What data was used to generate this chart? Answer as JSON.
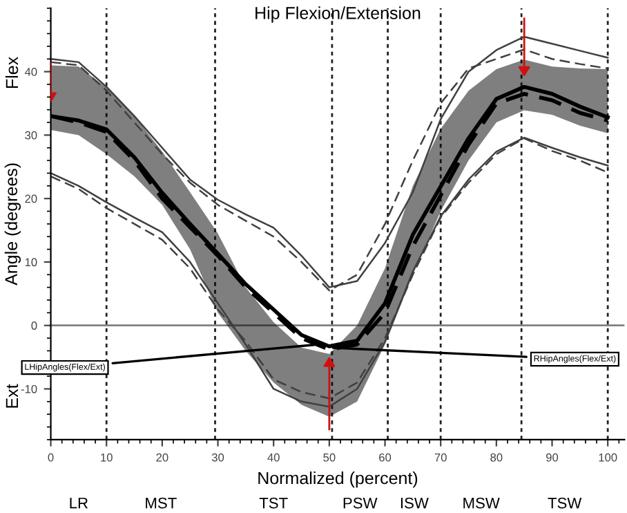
{
  "chart_data": {
    "type": "line",
    "title": "Hip Flexion/Extension",
    "xlabel": "Normalized (percent)",
    "ylabel": "Angle (degrees)",
    "annotations": [
      "Flex",
      "Ext",
      {
        "text": "LHipAngles(Flex/Ext)",
        "x": 48,
        "y": -3
      },
      {
        "text": "RHipAngles(Flex/Ext)",
        "x": 50,
        "y": -3.5
      },
      "LR",
      "MST",
      "TST",
      "PSW",
      "ISW",
      "MSW",
      "TSW"
    ],
    "x": [
      0,
      5,
      10,
      15,
      20,
      25,
      30,
      35,
      40,
      45,
      50,
      55,
      60,
      65,
      70,
      75,
      80,
      85,
      90,
      95,
      100
    ],
    "series": [
      {
        "color": "#404040",
        "line_style": "solid",
        "values": [
          42,
          41.5,
          37.6,
          33,
          28,
          23,
          19.8,
          17.5,
          15.4,
          11,
          6,
          7,
          13,
          21,
          32.5,
          40,
          43.4,
          45.5,
          44.4,
          43.3,
          42.2
        ]
      },
      {
        "color": "#404040",
        "line_style": "dashed",
        "values": [
          41.5,
          41,
          37,
          32,
          27,
          22.5,
          19,
          16.5,
          14,
          10,
          5.5,
          8,
          16,
          26,
          35,
          40.5,
          42,
          43.5,
          42,
          41.2,
          40.5
        ]
      },
      {
        "color": "#404040",
        "line_style": "solid",
        "values": [
          24,
          22,
          19.4,
          17,
          14.7,
          10,
          3.5,
          -3,
          -10,
          -12,
          -12.8,
          -10,
          -2.6,
          8.5,
          17.2,
          23,
          27.4,
          29.6,
          28,
          26.5,
          25.2
        ]
      },
      {
        "color": "#404040",
        "line_style": "dashed",
        "values": [
          23.5,
          21.5,
          18.5,
          16,
          13.5,
          9,
          2.5,
          -2.5,
          -8.5,
          -10.5,
          -11.5,
          -9,
          -2,
          8,
          17,
          22.5,
          27,
          29.5,
          27.5,
          26,
          24.1
        ]
      },
      {
        "color": "#000000",
        "line_style": "solid",
        "values": [
          33,
          32.3,
          30.9,
          26.5,
          20.9,
          16,
          11.3,
          6.5,
          2.5,
          -1.5,
          -3.3,
          -2.4,
          3.5,
          14.3,
          21.9,
          29.5,
          35.7,
          37.6,
          36.5,
          34.5,
          32.8
        ],
        "lower": [
          30.8,
          30,
          27,
          23.5,
          19,
          12,
          2,
          -4,
          -9,
          -12.5,
          -14.4,
          -12,
          -3,
          8,
          18,
          26,
          32,
          33.9,
          33.2,
          31.5,
          30.3
        ],
        "upper": [
          41,
          40.8,
          37.5,
          33,
          27.4,
          21,
          14.5,
          6,
          0.5,
          -3.5,
          -4.5,
          0,
          9,
          22,
          31,
          37,
          40.4,
          41.9,
          40.8,
          40.5,
          40.4
        ]
      },
      {
        "color": "#000000",
        "line_style": "dashed",
        "values": [
          33,
          32,
          30.5,
          26,
          20,
          15.5,
          11,
          6,
          2,
          -2,
          -3.8,
          -3,
          2,
          12.5,
          20.5,
          28.5,
          35,
          36.5,
          35.5,
          33.5,
          32.3
        ]
      }
    ],
    "xlim": [
      0,
      103
    ],
    "ylim": [
      -18,
      50
    ],
    "xticks": [
      0,
      10,
      20,
      30,
      40,
      50,
      60,
      70,
      80,
      90,
      100
    ],
    "yticks": [
      -10,
      0,
      10,
      20,
      30,
      40
    ],
    "ref_lines": [
      {
        "axis": "y",
        "value": 0,
        "color": "#808080"
      },
      {
        "axis": "x",
        "value": 10,
        "color": "#222222",
        "line_style": "dotted"
      },
      {
        "axis": "x",
        "value": 29.5,
        "color": "#222222",
        "line_style": "dotted"
      },
      {
        "axis": "x",
        "value": 50.5,
        "color": "#222222",
        "line_style": "dotted"
      },
      {
        "axis": "x",
        "value": 60.5,
        "color": "#222222",
        "line_style": "dotted"
      },
      {
        "axis": "x",
        "value": 70,
        "color": "#222222",
        "line_style": "dotted"
      },
      {
        "axis": "x",
        "value": 84.5,
        "color": "#222222",
        "line_style": "dotted"
      },
      {
        "axis": "x",
        "value": 100,
        "color": "#222222",
        "line_style": "dotted"
      }
    ],
    "grid": false
  }
}
